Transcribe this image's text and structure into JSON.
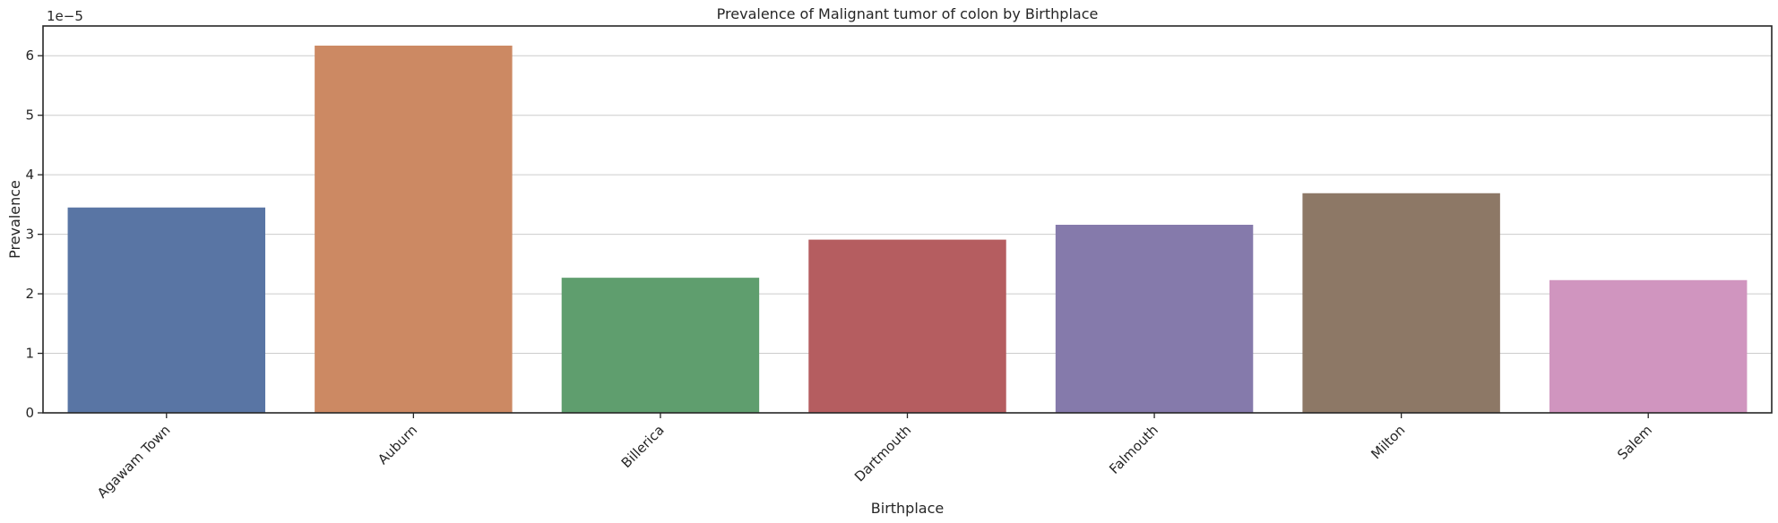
{
  "chart_data": {
    "type": "bar",
    "title": "Prevalence of Malignant tumor of colon by Birthplace",
    "xlabel": "Birthplace",
    "ylabel": "Prevalence",
    "y_offset_label": "1e−5",
    "categories": [
      "Agawam Town",
      "Auburn",
      "Billerica",
      "Dartmouth",
      "Falmouth",
      "Milton",
      "Salem"
    ],
    "values": [
      3.45e-05,
      6.17e-05,
      2.27e-05,
      2.91e-05,
      3.16e-05,
      3.69e-05,
      2.23e-05
    ],
    "colors": [
      "#5975a4",
      "#cc8963",
      "#5f9e6e",
      "#b55d60",
      "#857aab",
      "#8d7866",
      "#d095bf"
    ],
    "ylim": [
      0,
      6.5e-05
    ],
    "yticks": [
      0,
      1e-05,
      2e-05,
      3e-05,
      4e-05,
      5e-05,
      6e-05
    ],
    "ytick_labels": [
      "0",
      "1",
      "2",
      "3",
      "4",
      "5",
      "6"
    ],
    "grid": "horizontal",
    "legend": "none"
  }
}
